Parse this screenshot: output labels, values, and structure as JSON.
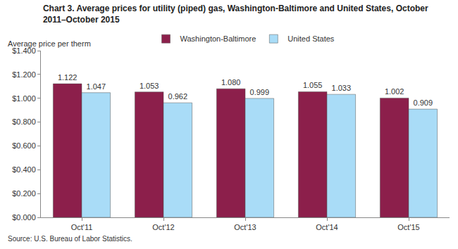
{
  "chart_data": {
    "type": "bar",
    "title": "Chart 3. Average prices for utility (piped) gas, Washington-Baltimore and United States, October 2011–October 2015",
    "ylabel": "Average price per therm",
    "source": "Source: U.S. Bureau of Labor Statistics.",
    "categories": [
      "Oct'11",
      "Oct'12",
      "Oct'13",
      "Oct'14",
      "Oct'15"
    ],
    "series": [
      {
        "name": "Washington-Baltimore",
        "color": "#8c1f4b",
        "values": [
          1.122,
          1.053,
          1.08,
          1.055,
          1.002
        ],
        "value_labels": [
          "1.122",
          "1.053",
          "1.080",
          "1.055",
          "1.002"
        ]
      },
      {
        "name": "United States",
        "color": "#a9dcf7",
        "values": [
          1.047,
          0.962,
          0.999,
          1.033,
          0.909
        ],
        "value_labels": [
          "1.047",
          "0.962",
          "0.999",
          "1.033",
          "0.909"
        ]
      }
    ],
    "ylim": [
      0,
      1.4
    ],
    "yticks": [
      {
        "value": 0,
        "label": "$0.000"
      },
      {
        "value": 0.2,
        "label": "$0.200"
      },
      {
        "value": 0.4,
        "label": "$0.400"
      },
      {
        "value": 0.6,
        "label": "$0.600"
      },
      {
        "value": 0.8,
        "label": "$0.800"
      },
      {
        "value": 1.0,
        "label": "$1.000"
      },
      {
        "value": 1.2,
        "label": "$1.200"
      },
      {
        "value": 1.4,
        "label": "$1.400"
      }
    ],
    "grid": false,
    "legend": "top",
    "data_labels": true
  }
}
